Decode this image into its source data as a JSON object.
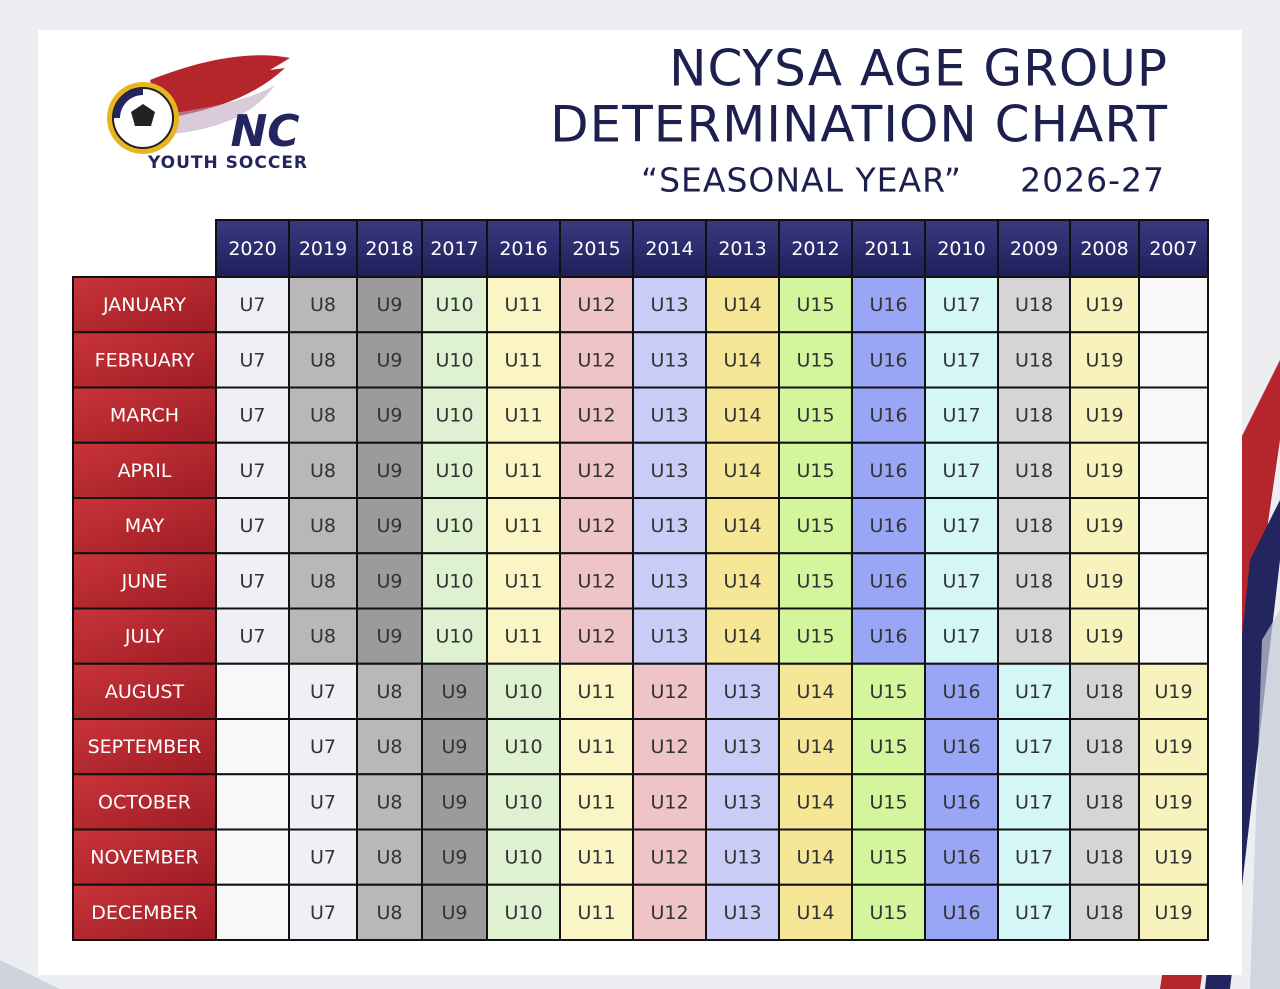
{
  "header": {
    "logo": {
      "initials": "NC",
      "name": "YOUTH SOCCER"
    },
    "title_lines": [
      "NCYSA AGE GROUP",
      "DETERMINATION CHART"
    ],
    "subtitle": "“SEASONAL YEAR”",
    "season": "2026-27"
  },
  "table": {
    "columns": [
      "2020",
      "2019",
      "2018",
      "2017",
      "2016",
      "2015",
      "2014",
      "2013",
      "2012",
      "2011",
      "2010",
      "2009",
      "2008",
      "2007"
    ],
    "rows": [
      {
        "month": "JANUARY",
        "cells": [
          "U7",
          "U8",
          "U9",
          "U10",
          "U11",
          "U12",
          "U13",
          "U14",
          "U15",
          "U16",
          "U17",
          "U18",
          "U19",
          null
        ]
      },
      {
        "month": "FEBRUARY",
        "cells": [
          "U7",
          "U8",
          "U9",
          "U10",
          "U11",
          "U12",
          "U13",
          "U14",
          "U15",
          "U16",
          "U17",
          "U18",
          "U19",
          null
        ]
      },
      {
        "month": "MARCH",
        "cells": [
          "U7",
          "U8",
          "U9",
          "U10",
          "U11",
          "U12",
          "U13",
          "U14",
          "U15",
          "U16",
          "U17",
          "U18",
          "U19",
          null
        ]
      },
      {
        "month": "APRIL",
        "cells": [
          "U7",
          "U8",
          "U9",
          "U10",
          "U11",
          "U12",
          "U13",
          "U14",
          "U15",
          "U16",
          "U17",
          "U18",
          "U19",
          null
        ]
      },
      {
        "month": "MAY",
        "cells": [
          "U7",
          "U8",
          "U9",
          "U10",
          "U11",
          "U12",
          "U13",
          "U14",
          "U15",
          "U16",
          "U17",
          "U18",
          "U19",
          null
        ]
      },
      {
        "month": "JUNE",
        "cells": [
          "U7",
          "U8",
          "U9",
          "U10",
          "U11",
          "U12",
          "U13",
          "U14",
          "U15",
          "U16",
          "U17",
          "U18",
          "U19",
          null
        ]
      },
      {
        "month": "JULY",
        "cells": [
          "U7",
          "U8",
          "U9",
          "U10",
          "U11",
          "U12",
          "U13",
          "U14",
          "U15",
          "U16",
          "U17",
          "U18",
          "U19",
          null
        ]
      },
      {
        "month": "AUGUST",
        "cells": [
          null,
          "U7",
          "U8",
          "U9",
          "U10",
          "U11",
          "U12",
          "U13",
          "U14",
          "U15",
          "U16",
          "U17",
          "U18",
          "U19"
        ]
      },
      {
        "month": "SEPTEMBER",
        "cells": [
          null,
          "U7",
          "U8",
          "U9",
          "U10",
          "U11",
          "U12",
          "U13",
          "U14",
          "U15",
          "U16",
          "U17",
          "U18",
          "U19"
        ]
      },
      {
        "month": "OCTOBER",
        "cells": [
          null,
          "U7",
          "U8",
          "U9",
          "U10",
          "U11",
          "U12",
          "U13",
          "U14",
          "U15",
          "U16",
          "U17",
          "U18",
          "U19"
        ]
      },
      {
        "month": "NOVEMBER",
        "cells": [
          null,
          "U7",
          "U8",
          "U9",
          "U10",
          "U11",
          "U12",
          "U13",
          "U14",
          "U15",
          "U16",
          "U17",
          "U18",
          "U19"
        ]
      },
      {
        "month": "DECEMBER",
        "cells": [
          null,
          "U7",
          "U8",
          "U9",
          "U10",
          "U11",
          "U12",
          "U13",
          "U14",
          "U15",
          "U16",
          "U17",
          "U18",
          "U19"
        ]
      }
    ]
  }
}
